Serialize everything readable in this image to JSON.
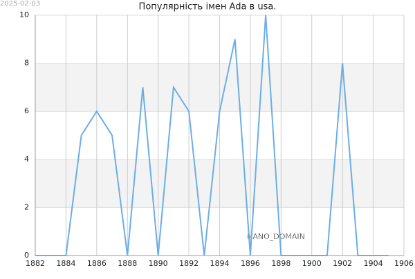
{
  "date_stamp": "2025-02-03",
  "watermark": "NANO_DOMAIN",
  "chart_data": {
    "type": "line",
    "title": "Популярність імен Ada в usa.",
    "x": [
      1882,
      1883,
      1884,
      1885,
      1886,
      1887,
      1888,
      1889,
      1890,
      1891,
      1892,
      1893,
      1894,
      1895,
      1896,
      1897,
      1898,
      1899,
      1900,
      1901,
      1902,
      1903,
      1904,
      1905
    ],
    "values": [
      0,
      0,
      0,
      5,
      6,
      5,
      0,
      7,
      0,
      7,
      6,
      0,
      6,
      9,
      0,
      10,
      0,
      0,
      0,
      0,
      8,
      0,
      0,
      0
    ],
    "color": "#6aaee8",
    "xlim": [
      1882,
      1906
    ],
    "xticks": [
      1882,
      1884,
      1886,
      1888,
      1890,
      1892,
      1894,
      1896,
      1898,
      1900,
      1902,
      1904,
      1906
    ],
    "ylim": [
      0,
      10
    ],
    "yticks": [
      0,
      2,
      4,
      6,
      8,
      10
    ],
    "grid": true
  }
}
